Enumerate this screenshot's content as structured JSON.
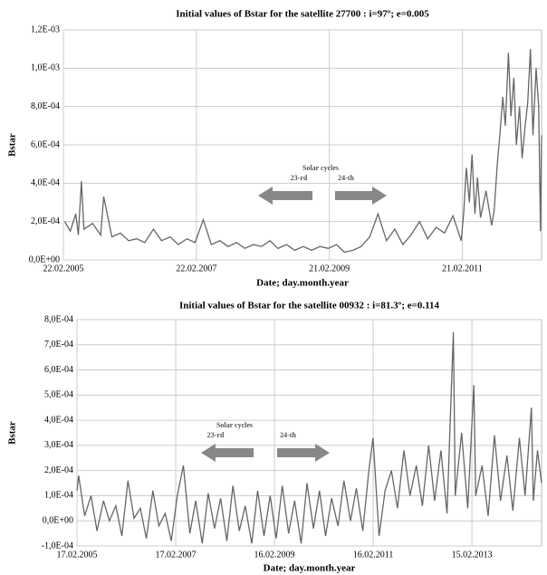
{
  "chart_data": [
    {
      "type": "line",
      "title": "Initial values of Bstar for the satellite 27700 : i=97º; e=0.005",
      "x_label": "Date; day.month.year",
      "y_label": "Bstar",
      "annotations": [
        "Solar cycles",
        "23-rd",
        "24-th"
      ],
      "color": "#666666",
      "grid": true,
      "xlim": [
        "22.02.2005",
        "01.05.2012"
      ],
      "xticks": [
        "22.02.2005",
        "22.02.2007",
        "21.02.2009",
        "21.02.2011"
      ],
      "ylim": [
        0,
        0.0012
      ],
      "yticks": [
        {
          "value": 0,
          "label": "0,0E+00"
        },
        {
          "value": 0.0002,
          "label": "2,0E-04"
        },
        {
          "value": 0.0004,
          "label": "4,0E-04"
        },
        {
          "value": 0.0006,
          "label": "6,0E-04"
        },
        {
          "value": 0.0008,
          "label": "8,0E-04"
        },
        {
          "value": 0.001,
          "label": "1,0E-03"
        },
        {
          "value": 0.0012,
          "label": "1,2E-03"
        }
      ],
      "x": [
        "01.03.2005",
        "01.04.2005",
        "01.05.2005",
        "15.05.2005",
        "01.06.2005",
        "15.06.2005",
        "01.08.2005",
        "15.09.2005",
        "01.10.2005",
        "15.11.2005",
        "01.01.2006",
        "15.02.2006",
        "01.04.2006",
        "15.05.2006",
        "01.07.2006",
        "15.08.2006",
        "01.10.2006",
        "15.11.2006",
        "01.01.2007",
        "15.02.2007",
        "01.04.2007",
        "15.05.2007",
        "01.07.2007",
        "15.08.2007",
        "01.10.2007",
        "15.11.2007",
        "01.01.2008",
        "15.02.2008",
        "01.04.2008",
        "15.05.2008",
        "01.07.2008",
        "15.08.2008",
        "01.10.2008",
        "15.11.2008",
        "01.01.2009",
        "15.02.2009",
        "01.04.2009",
        "15.05.2009",
        "01.07.2009",
        "15.08.2009",
        "01.10.2009",
        "15.11.2009",
        "01.01.2010",
        "15.02.2010",
        "01.04.2010",
        "15.05.2010",
        "01.07.2010",
        "15.08.2010",
        "01.10.2010",
        "15.11.2010",
        "01.01.2011",
        "15.02.2011",
        "01.03.2011",
        "15.03.2011",
        "01.04.2011",
        "15.04.2011",
        "01.05.2011",
        "15.05.2011",
        "01.06.2011",
        "01.07.2011",
        "01.08.2011",
        "15.08.2011",
        "01.09.2011",
        "15.09.2011",
        "01.10.2011",
        "15.10.2011",
        "01.11.2011",
        "15.11.2011",
        "01.12.2011",
        "15.12.2011",
        "01.01.2012",
        "15.01.2012",
        "01.02.2012",
        "15.02.2012",
        "01.03.2012",
        "15.03.2012",
        "01.04.2012",
        "15.04.2012",
        "25.04.2012",
        "01.05.2012"
      ],
      "values": [
        0.0002,
        0.00015,
        0.00024,
        0.00013,
        0.00041,
        0.00016,
        0.00019,
        0.00013,
        0.00033,
        0.00012,
        0.00014,
        0.0001,
        0.00011,
        9e-05,
        0.00016,
        0.0001,
        0.00012,
        8e-05,
        0.00011,
        9e-05,
        0.00021,
        8e-05,
        0.0001,
        7e-05,
        9e-05,
        6e-05,
        8e-05,
        7e-05,
        0.0001,
        6e-05,
        8e-05,
        5e-05,
        7e-05,
        5e-05,
        7e-05,
        6e-05,
        8e-05,
        4e-05,
        5e-05,
        7e-05,
        0.00012,
        0.00024,
        0.0001,
        0.00016,
        8e-05,
        0.00013,
        0.0002,
        0.00011,
        0.00017,
        0.00014,
        0.00023,
        0.0001,
        0.00025,
        0.00048,
        0.0003,
        0.00055,
        0.00024,
        0.00043,
        0.00022,
        0.00036,
        0.00018,
        0.00026,
        0.0005,
        0.00065,
        0.00085,
        0.0007,
        0.00108,
        0.00075,
        0.00095,
        0.0006,
        0.0008,
        0.00053,
        0.0007,
        0.00082,
        0.0011,
        0.00065,
        0.001,
        0.0008,
        0.00015,
        0.00065
      ]
    },
    {
      "type": "line",
      "title": "Initial values of Bstar for the satellite 00932 : i=81.3º; e=0.114",
      "x_label": "Date; day.month.year",
      "y_label": "Bstar",
      "annotations": [
        "Solar cycles",
        "23-rd",
        "24-th"
      ],
      "color": "#666666",
      "grid": true,
      "xlim": [
        "17.02.2005",
        "15.07.2014"
      ],
      "xticks": [
        "17.02.2005",
        "17.02.2007",
        "16.02.2009",
        "16.02.2011",
        "15.02.2013"
      ],
      "ylim": [
        -0.0001,
        0.0008
      ],
      "yticks": [
        {
          "value": -0.0001,
          "label": "-1,0E-04"
        },
        {
          "value": 0,
          "label": "0,0E+00"
        },
        {
          "value": 0.0001,
          "label": "1,0E-04"
        },
        {
          "value": 0.0002,
          "label": "2,0E-04"
        },
        {
          "value": 0.0003,
          "label": "3,0E-04"
        },
        {
          "value": 0.0004,
          "label": "4,0E-04"
        },
        {
          "value": 0.0005,
          "label": "5,0E-04"
        },
        {
          "value": 0.0006,
          "label": "6,0E-04"
        },
        {
          "value": 0.0007,
          "label": "7,0E-04"
        },
        {
          "value": 0.0008,
          "label": "8,0E-04"
        }
      ],
      "x": [
        "17.02.2005",
        "01.03.2005",
        "15.04.2005",
        "01.06.2005",
        "15.07.2005",
        "01.09.2005",
        "15.10.2005",
        "01.12.2005",
        "15.01.2006",
        "01.03.2006",
        "15.04.2006",
        "01.06.2006",
        "15.07.2006",
        "01.09.2006",
        "15.10.2006",
        "01.12.2006",
        "15.01.2007",
        "01.03.2007",
        "15.04.2007",
        "01.06.2007",
        "15.07.2007",
        "01.09.2007",
        "15.10.2007",
        "01.12.2007",
        "15.01.2008",
        "01.03.2008",
        "15.04.2008",
        "01.06.2008",
        "15.07.2008",
        "01.09.2008",
        "15.10.2008",
        "01.12.2008",
        "15.01.2009",
        "01.03.2009",
        "15.04.2009",
        "01.06.2009",
        "15.07.2009",
        "01.09.2009",
        "15.10.2009",
        "01.12.2009",
        "15.01.2010",
        "01.03.2010",
        "15.04.2010",
        "01.06.2010",
        "15.07.2010",
        "01.09.2010",
        "15.10.2010",
        "01.12.2010",
        "15.01.2011",
        "15.02.2011",
        "01.04.2011",
        "15.05.2011",
        "01.07.2011",
        "15.08.2011",
        "01.10.2011",
        "15.11.2011",
        "01.01.2012",
        "15.02.2012",
        "01.04.2012",
        "15.05.2012",
        "01.07.2012",
        "15.08.2012",
        "01.10.2012",
        "15.10.2012",
        "01.12.2012",
        "15.01.2013",
        "01.03.2013",
        "15.03.2013",
        "01.05.2013",
        "15.06.2013",
        "01.08.2013",
        "15.09.2013",
        "01.11.2013",
        "15.12.2013",
        "01.02.2014",
        "15.03.2014",
        "01.05.2014",
        "15.05.2014",
        "15.06.2014",
        "15.07.2014"
      ],
      "values": [
        0.00012,
        0.00018,
        2e-05,
        0.0001,
        -4e-05,
        8e-05,
        0.0,
        6e-05,
        -6e-05,
        0.00016,
        1e-05,
        5e-05,
        -7e-05,
        0.00012,
        -2e-05,
        3e-05,
        -8e-05,
        0.0001,
        0.00022,
        -5e-05,
        8e-05,
        -9e-05,
        0.00011,
        -3e-05,
        9e-05,
        -8e-05,
        0.00014,
        -4e-05,
        6e-05,
        -9e-05,
        0.00012,
        -6e-05,
        0.0001,
        -7e-05,
        0.00014,
        -5e-05,
        8e-05,
        -9e-05,
        0.00015,
        -3e-05,
        0.00012,
        -6e-05,
        9e-05,
        -2e-05,
        0.00016,
        0.0,
        0.00013,
        -4e-05,
        0.0002,
        0.00033,
        -6e-05,
        0.00012,
        0.0002,
        5e-05,
        0.00028,
        0.0001,
        0.00022,
        6e-05,
        0.0003,
        8e-05,
        0.00028,
        3e-05,
        0.00075,
        0.0001,
        0.00035,
        5e-05,
        0.00054,
        0.0001,
        0.00022,
        2e-05,
        0.00034,
        8e-05,
        0.00026,
        4e-05,
        0.00033,
        0.0001,
        0.00045,
        8e-05,
        0.00028,
        0.00015
      ]
    }
  ]
}
